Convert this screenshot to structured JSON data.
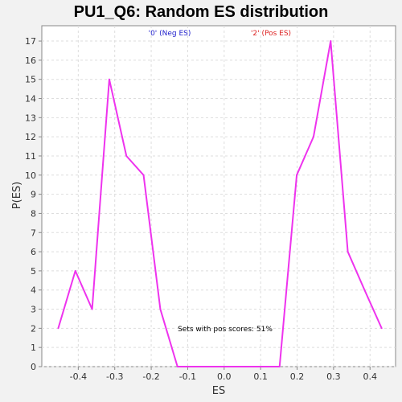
{
  "chart_data": {
    "type": "line",
    "title": "PU1_Q6: Random ES distribution",
    "xlabel": "ES",
    "ylabel": "P(ES)",
    "xlim": [
      -0.5,
      0.47
    ],
    "ylim": [
      0,
      17.8
    ],
    "x_ticks": [
      -0.4,
      -0.3,
      -0.2,
      -0.1,
      0.0,
      0.1,
      0.2,
      0.3,
      0.4
    ],
    "x_tick_labels": [
      "-0.4",
      "-0.3",
      "-0.2",
      "-0.1",
      "0.0",
      "0.1",
      "0.2",
      "0.3",
      "0.4"
    ],
    "y_ticks": [
      0,
      1,
      2,
      3,
      4,
      5,
      6,
      7,
      8,
      9,
      10,
      11,
      12,
      13,
      14,
      15,
      16,
      17
    ],
    "y_tick_labels": [
      "0",
      "1",
      "2",
      "3",
      "4",
      "5",
      "6",
      "7",
      "8",
      "9",
      "10",
      "11",
      "12",
      "13",
      "14",
      "15",
      "16",
      "17"
    ],
    "grid": true,
    "legend": [
      {
        "label": "'0' (Neg ES)",
        "color": "#2222cc"
      },
      {
        "label": "'2' (Pos ES)",
        "color": "#dd2222"
      }
    ],
    "annotation": "Sets with pos scores: 51%",
    "series": [
      {
        "color": "#ee33ee",
        "points": [
          [
            -0.455,
            2
          ],
          [
            -0.408,
            5
          ],
          [
            -0.362,
            3
          ],
          [
            -0.315,
            15
          ],
          [
            -0.268,
            11
          ],
          [
            -0.221,
            10
          ],
          [
            -0.175,
            3
          ],
          [
            -0.128,
            0
          ],
          [
            -0.081,
            0
          ],
          [
            -0.035,
            0
          ],
          [
            0.012,
            0
          ],
          [
            0.059,
            0
          ],
          [
            0.105,
            0
          ],
          [
            0.152,
            0
          ],
          [
            0.199,
            10
          ],
          [
            0.245,
            12
          ],
          [
            0.292,
            17
          ],
          [
            0.339,
            6
          ],
          [
            0.385,
            4
          ],
          [
            0.432,
            2
          ]
        ]
      }
    ]
  }
}
